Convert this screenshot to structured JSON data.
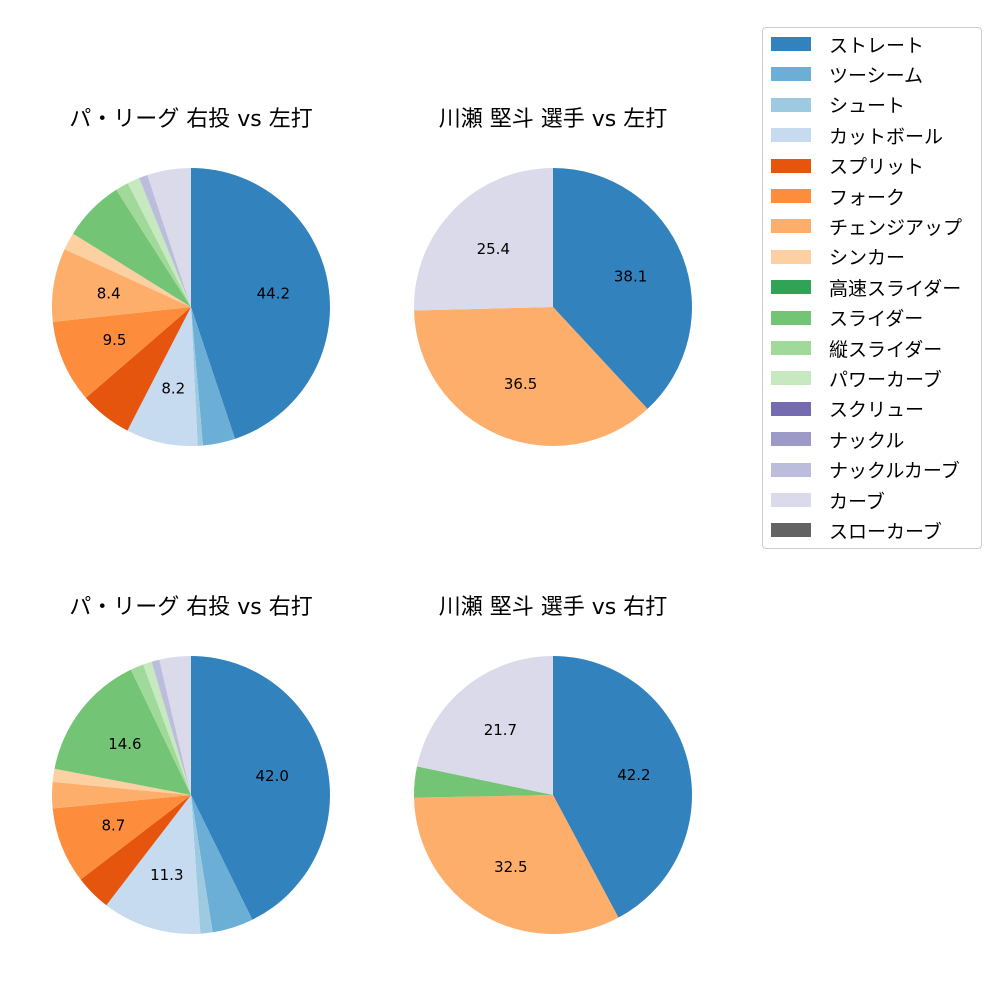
{
  "colors": {
    "ストレート": "#3182bd",
    "ツーシーム": "#6baed6",
    "シュート": "#9ecae1",
    "カットボール": "#c6dbef",
    "スプリット": "#e6550d",
    "フォーク": "#fd8d3c",
    "チェンジアップ": "#fdae6b",
    "シンカー": "#fdd0a2",
    "高速スライダー": "#31a354",
    "スライダー": "#74c476",
    "縦スライダー": "#a1d99b",
    "パワーカーブ": "#c7e9c0",
    "スクリュー": "#756bb1",
    "ナックル": "#9e9ac8",
    "ナックルカーブ": "#bcbddc",
    "カーブ": "#dadaeb",
    "スローカーブ": "#636363"
  },
  "legend": {
    "items": [
      "ストレート",
      "ツーシーム",
      "シュート",
      "カットボール",
      "スプリット",
      "フォーク",
      "チェンジアップ",
      "シンカー",
      "高速スライダー",
      "スライダー",
      "縦スライダー",
      "パワーカーブ",
      "スクリュー",
      "ナックル",
      "ナックルカーブ",
      "カーブ",
      "スローカーブ"
    ]
  },
  "chart_data": [
    {
      "type": "pie",
      "title": "パ・リーグ 右投 vs 左打",
      "slices": [
        {
          "label": "ストレート",
          "value": 44.2,
          "shown": "44.2"
        },
        {
          "label": "ツーシーム",
          "value": 3.7
        },
        {
          "label": "シュート",
          "value": 0.6
        },
        {
          "label": "カットボール",
          "value": 8.2,
          "shown": "8.2"
        },
        {
          "label": "スプリット",
          "value": 6.0
        },
        {
          "label": "フォーク",
          "value": 9.5,
          "shown": "9.5"
        },
        {
          "label": "チェンジアップ",
          "value": 8.4,
          "shown": "8.4"
        },
        {
          "label": "シンカー",
          "value": 2.0
        },
        {
          "label": "スライダー",
          "value": 7.0
        },
        {
          "label": "縦スライダー",
          "value": 1.5
        },
        {
          "label": "パワーカーブ",
          "value": 1.4
        },
        {
          "label": "ナックルカーブ",
          "value": 1.0
        },
        {
          "label": "カーブ",
          "value": 5.0
        }
      ]
    },
    {
      "type": "pie",
      "title": "川瀬 堅斗 選手 vs 左打",
      "slices": [
        {
          "label": "ストレート",
          "value": 38.1,
          "shown": "38.1"
        },
        {
          "label": "チェンジアップ",
          "value": 36.5,
          "shown": "36.5"
        },
        {
          "label": "カーブ",
          "value": 25.4,
          "shown": "25.4"
        }
      ]
    },
    {
      "type": "pie",
      "title": "パ・リーグ 右投 vs 右打",
      "slices": [
        {
          "label": "ストレート",
          "value": 42.0,
          "shown": "42.0"
        },
        {
          "label": "ツーシーム",
          "value": 4.7
        },
        {
          "label": "シュート",
          "value": 1.4
        },
        {
          "label": "カットボール",
          "value": 11.3,
          "shown": "11.3"
        },
        {
          "label": "スプリット",
          "value": 4.1
        },
        {
          "label": "フォーク",
          "value": 8.7,
          "shown": "8.7"
        },
        {
          "label": "チェンジアップ",
          "value": 3.0
        },
        {
          "label": "シンカー",
          "value": 1.5
        },
        {
          "label": "スライダー",
          "value": 14.6,
          "shown": "14.6"
        },
        {
          "label": "縦スライダー",
          "value": 1.5
        },
        {
          "label": "パワーカーブ",
          "value": 1.0
        },
        {
          "label": "ナックルカーブ",
          "value": 0.9
        },
        {
          "label": "カーブ",
          "value": 3.6
        }
      ]
    },
    {
      "type": "pie",
      "title": "川瀬 堅斗 選手 vs 右打",
      "slices": [
        {
          "label": "ストレート",
          "value": 42.2,
          "shown": "42.2"
        },
        {
          "label": "チェンジアップ",
          "value": 32.5,
          "shown": "32.5"
        },
        {
          "label": "スライダー",
          "value": 3.6
        },
        {
          "label": "カーブ",
          "value": 21.7,
          "shown": "21.7"
        }
      ]
    }
  ]
}
